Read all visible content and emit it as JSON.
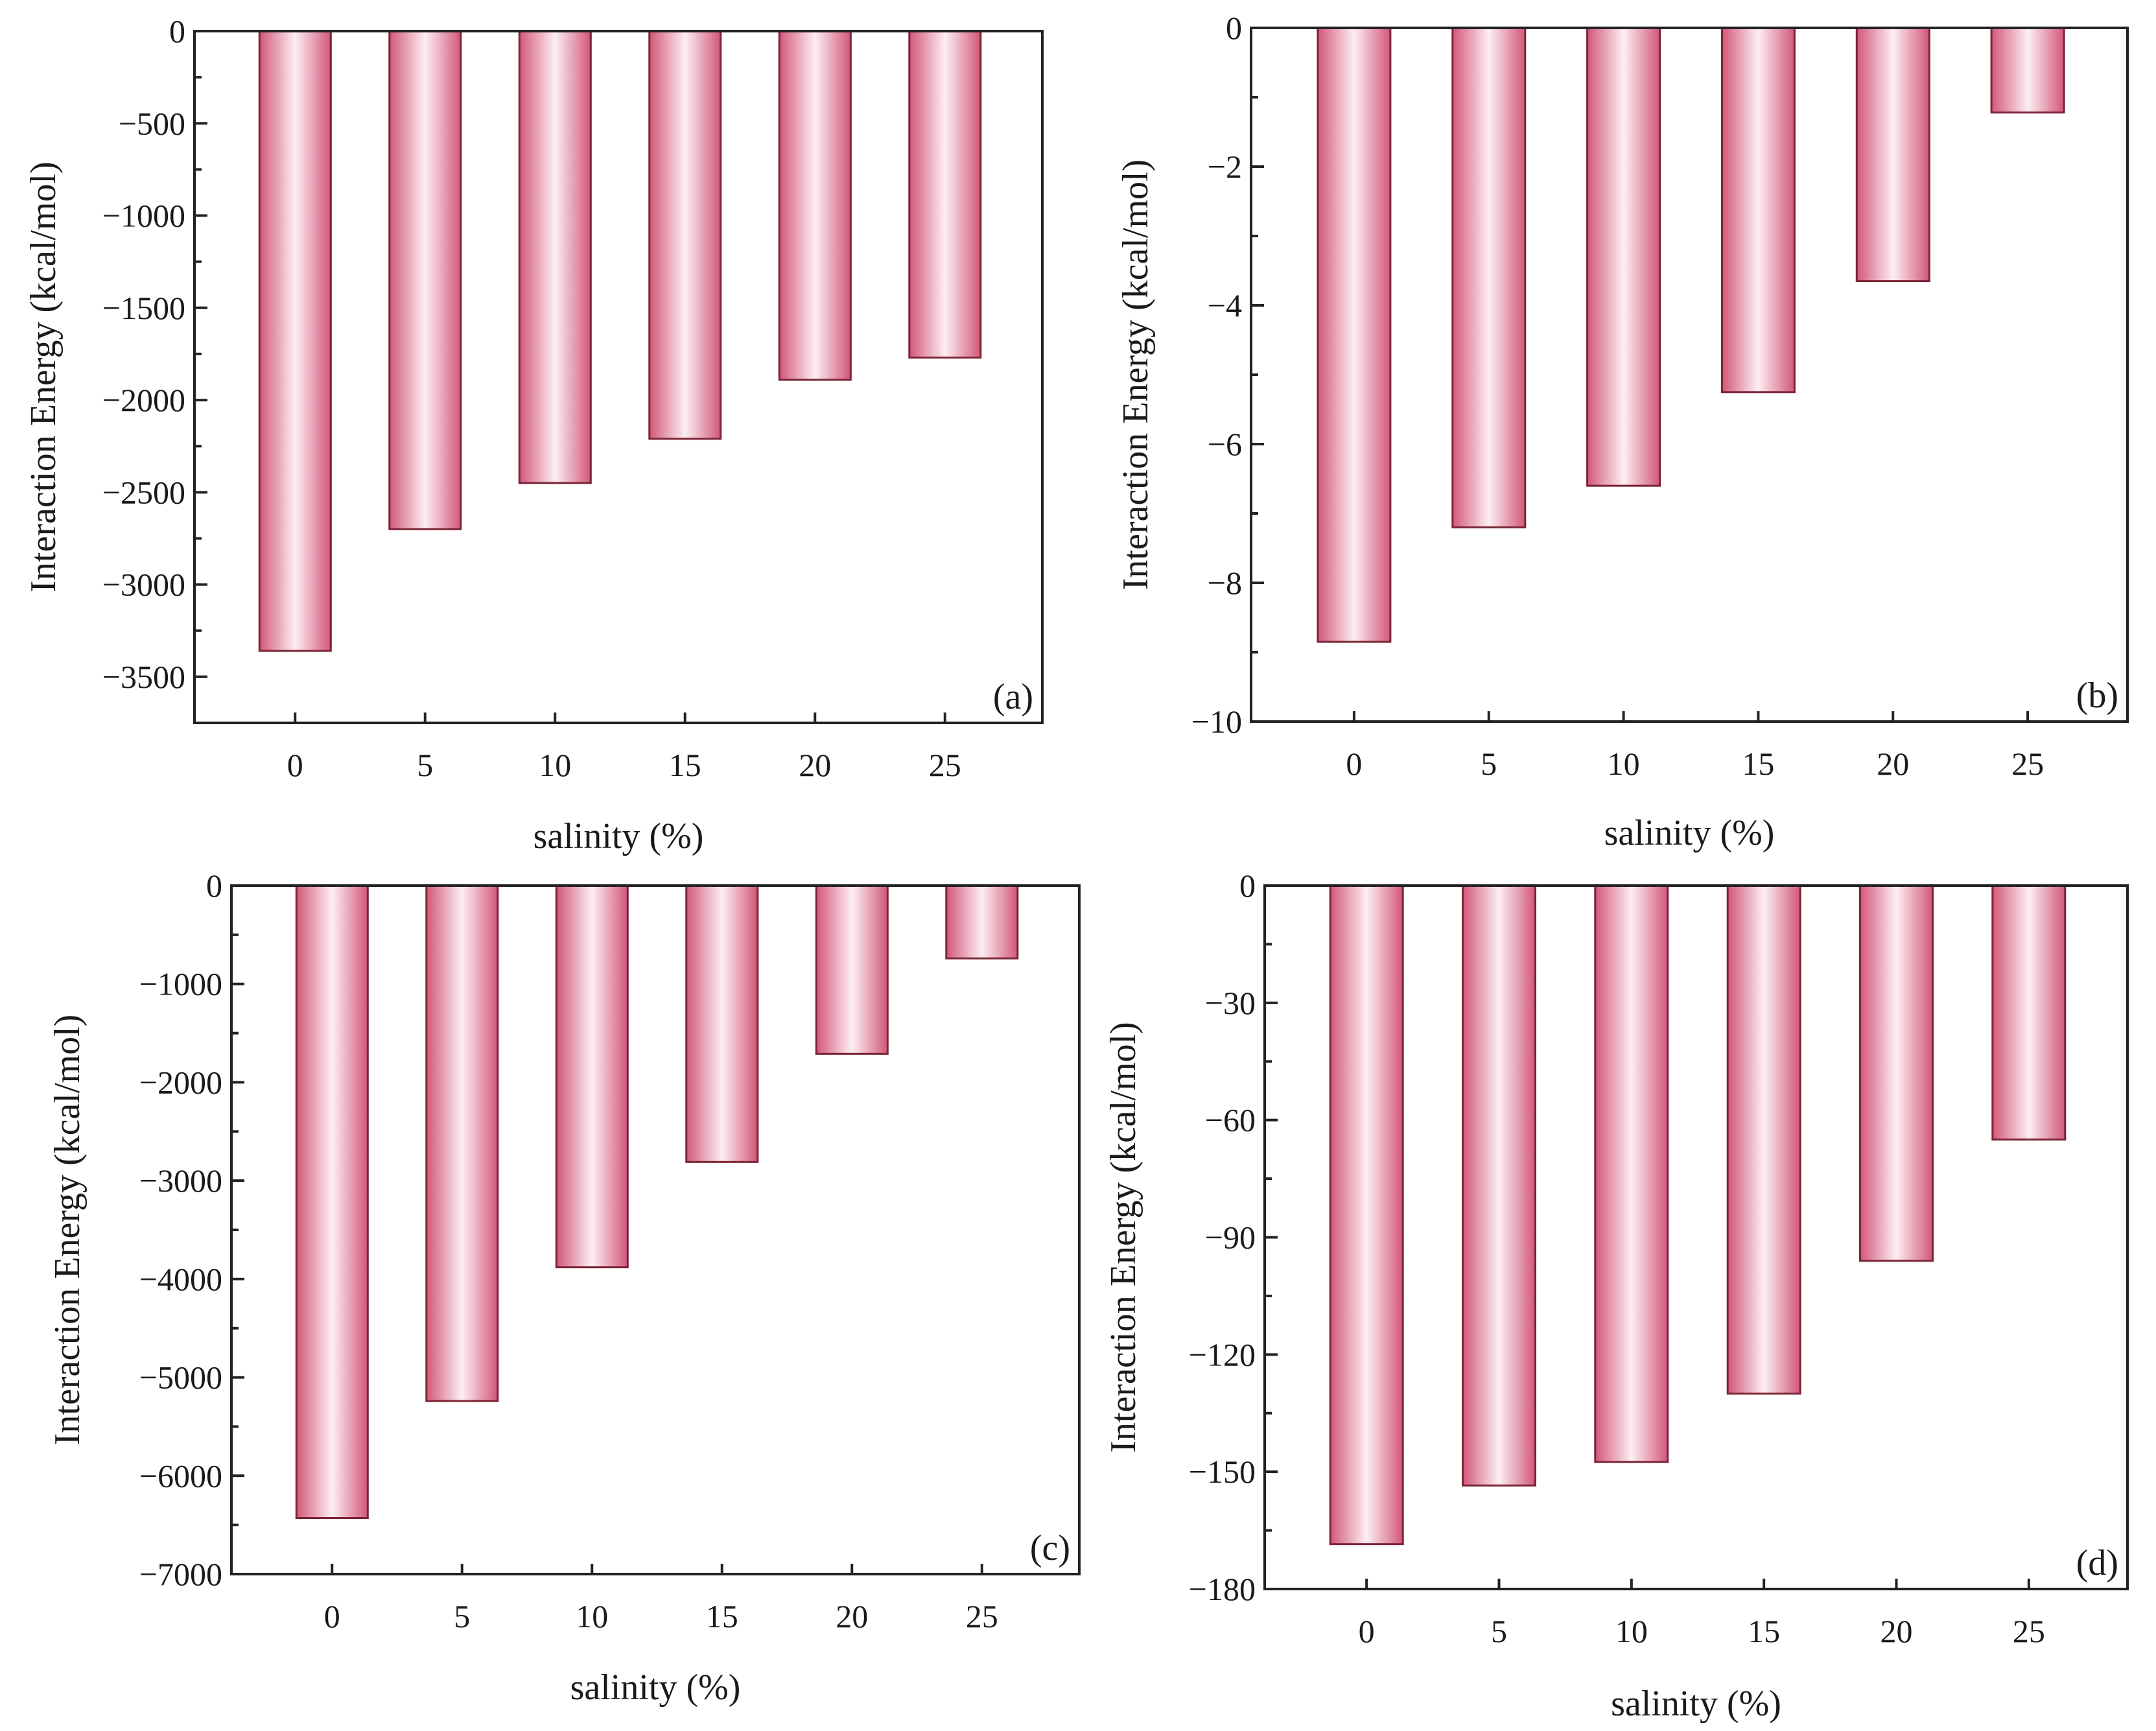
{
  "chart_data": [
    {
      "type": "bar",
      "panel_label": "(a)",
      "categories": [
        "0",
        "5",
        "10",
        "15",
        "20",
        "25"
      ],
      "values": [
        -3360,
        -2700,
        -2450,
        -2210,
        -1890,
        -1770
      ],
      "xlabel": "salinity (%)",
      "ylabel": "Interaction Energy (kcal/mol)",
      "ylim": [
        -3750,
        0
      ],
      "yticks": [
        0,
        -500,
        -1000,
        -1500,
        -2000,
        -2500,
        -3000,
        -3500
      ],
      "ytick_labels": [
        "0",
        "−500",
        "−1000",
        "−1500",
        "−2000",
        "−2500",
        "−3000",
        "−3500"
      ],
      "minor_step": 250,
      "grid": false
    },
    {
      "type": "bar",
      "panel_label": "(b)",
      "categories": [
        "0",
        "5",
        "10",
        "15",
        "20",
        "25"
      ],
      "values": [
        -8.85,
        -7.2,
        -6.6,
        -5.25,
        -3.65,
        -1.22
      ],
      "xlabel": "salinity (%)",
      "ylabel": "Interaction Energy (kcal/mol)",
      "ylim": [
        -10,
        0
      ],
      "yticks": [
        0,
        -2,
        -4,
        -6,
        -8,
        -10
      ],
      "ytick_labels": [
        "0",
        "−2",
        "−4",
        "−6",
        "−8",
        "−10"
      ],
      "minor_step": 1,
      "grid": false
    },
    {
      "type": "bar",
      "panel_label": "(c)",
      "categories": [
        "0",
        "5",
        "10",
        "15",
        "20",
        "25"
      ],
      "values": [
        -6430,
        -5240,
        -3880,
        -2810,
        -1710,
        -740
      ],
      "xlabel": "salinity (%)",
      "ylabel": "Interaction Energy (kcal/mol)",
      "ylim": [
        -7000,
        0
      ],
      "yticks": [
        0,
        -1000,
        -2000,
        -3000,
        -4000,
        -5000,
        -6000,
        -7000
      ],
      "ytick_labels": [
        "0",
        "−1000",
        "−2000",
        "−3000",
        "−4000",
        "−5000",
        "−6000",
        "−7000"
      ],
      "minor_step": 500,
      "grid": false
    },
    {
      "type": "bar",
      "panel_label": "(d)",
      "categories": [
        "0",
        "5",
        "10",
        "15",
        "20",
        "25"
      ],
      "values": [
        -168.5,
        -153.5,
        -147.5,
        -130,
        -96,
        -65
      ],
      "xlabel": "salinity (%)",
      "ylabel": "Interaction Energy (kcal/mol)",
      "ylim": [
        -180,
        0
      ],
      "yticks": [
        0,
        -30,
        -60,
        -90,
        -120,
        -150,
        -180
      ],
      "ytick_labels": [
        "0",
        "−30",
        "−60",
        "−90",
        "−120",
        "−150",
        "−180"
      ],
      "minor_step": 15,
      "grid": false
    }
  ],
  "colors": {
    "bar_edge": "#c74a6a",
    "bar_center": "#fdeef3",
    "bar_outline": "#7a2436",
    "axis": "#222222",
    "text": "#1a1a1a"
  }
}
